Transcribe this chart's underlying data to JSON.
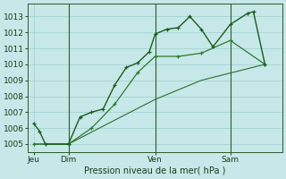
{
  "background_color": "#c6e8e8",
  "grid_color": "#9ecece",
  "line_color_dark": "#1a5c1a",
  "line_color_mid": "#2d7a2d",
  "line_color_thin": "#2d6e2d",
  "xlabel": "Pression niveau de la mer( hPa )",
  "ylim": [
    1004.5,
    1013.8
  ],
  "yticks": [
    1005,
    1006,
    1007,
    1008,
    1009,
    1010,
    1011,
    1012,
    1013
  ],
  "xtick_labels": [
    "Jeu",
    "Dim",
    "Ven",
    "Sam"
  ],
  "xtick_positions": [
    0.5,
    3.5,
    11.0,
    17.5
  ],
  "xlim": [
    0.0,
    22.0
  ],
  "vline_positions": [
    3.5,
    11.0,
    17.5
  ],
  "line1_x": [
    0.5,
    1.0,
    1.5,
    3.5,
    4.5,
    5.5,
    6.5,
    7.5,
    8.5,
    9.5,
    10.5,
    11.0,
    12.0,
    13.0,
    14.0,
    15.0,
    16.0,
    17.5,
    19.0,
    19.5,
    20.5
  ],
  "line1_y": [
    1006.3,
    1005.8,
    1005.0,
    1005.0,
    1006.7,
    1007.0,
    1007.2,
    1008.7,
    1009.8,
    1010.1,
    1010.8,
    1011.9,
    1012.2,
    1012.3,
    1013.0,
    1012.2,
    1011.1,
    1012.5,
    1013.2,
    1013.3,
    1010.0
  ],
  "line2_x": [
    0.5,
    3.5,
    5.5,
    7.5,
    9.5,
    11.0,
    13.0,
    15.0,
    17.5,
    20.5
  ],
  "line2_y": [
    1005.0,
    1005.0,
    1006.0,
    1007.5,
    1009.5,
    1010.5,
    1010.5,
    1010.7,
    1011.5,
    1010.0
  ],
  "line3_x": [
    0.5,
    3.5,
    7.5,
    11.0,
    15.0,
    20.5
  ],
  "line3_y": [
    1005.0,
    1005.0,
    1006.5,
    1007.8,
    1009.0,
    1010.0
  ]
}
